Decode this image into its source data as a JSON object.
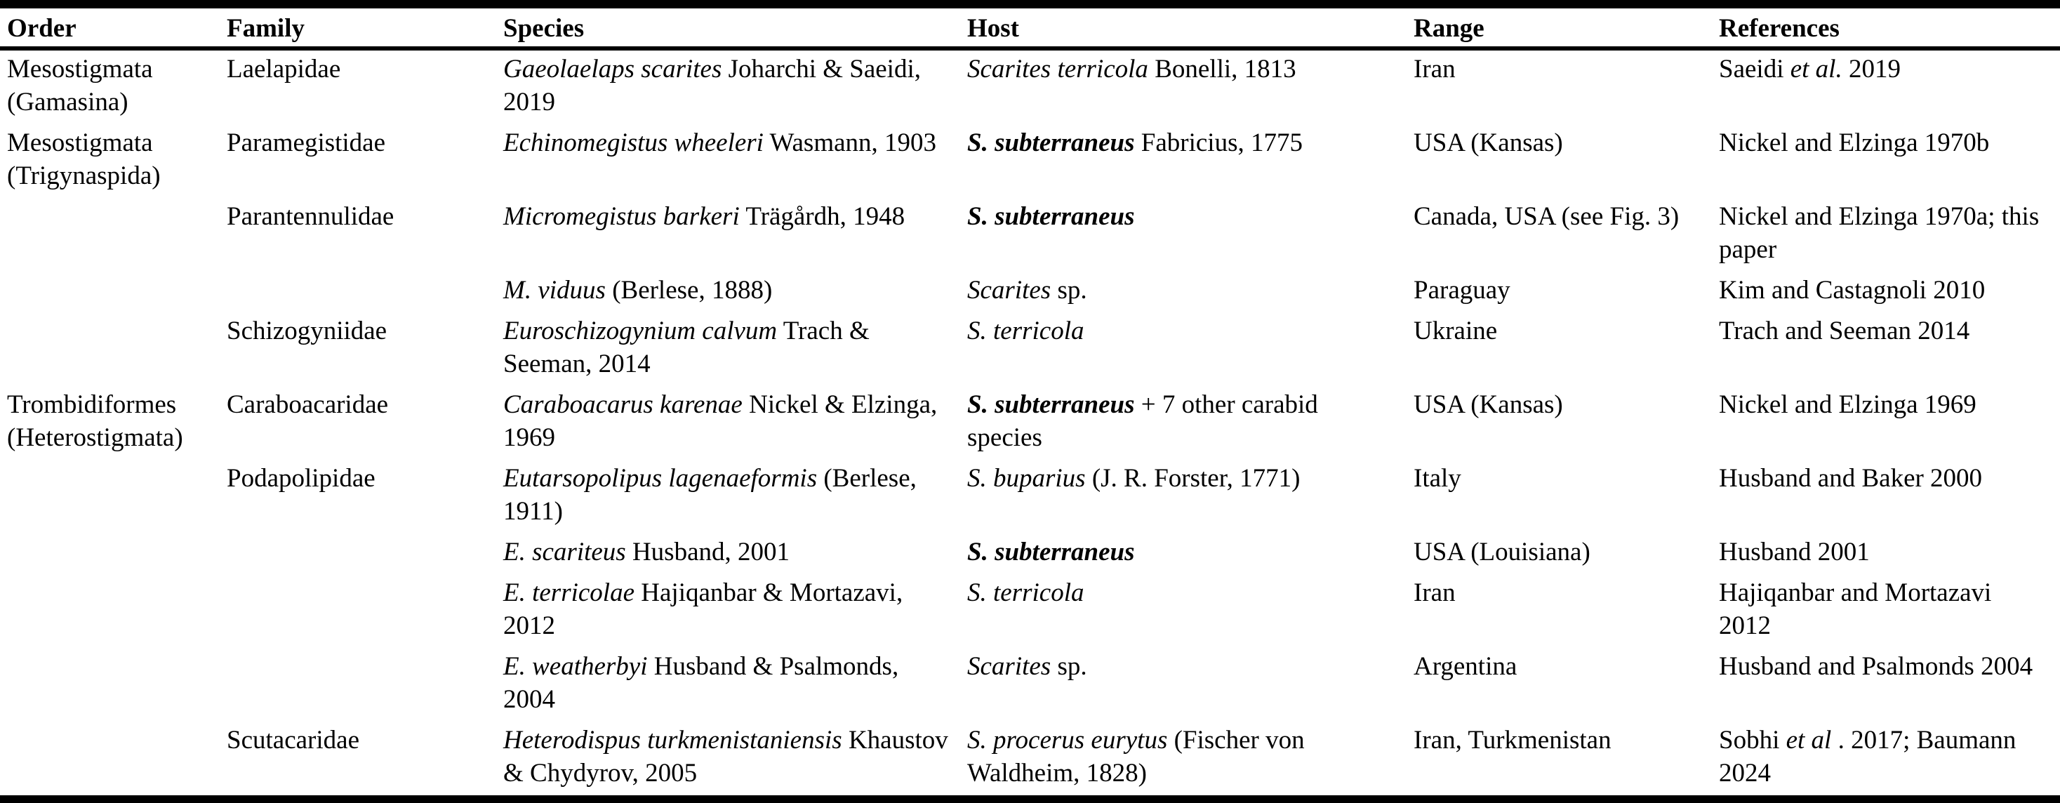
{
  "colors": {
    "text": "#000000",
    "background": "#ffffff",
    "border": "#000000"
  },
  "table": {
    "columns": [
      "Order",
      "Family",
      "Species",
      "Host",
      "Range",
      "References"
    ],
    "column_keys": [
      "order",
      "family",
      "species",
      "host",
      "range",
      "references"
    ],
    "rows": [
      {
        "order": [
          {
            "t": "Mesostigmata (Gamasina)",
            "s": "r"
          }
        ],
        "family": [
          {
            "t": "Laelapidae",
            "s": "r"
          }
        ],
        "species": [
          {
            "t": "Gaeolaelaps scarites",
            "s": "i"
          },
          {
            "t": " Joharchi & Saeidi, 2019",
            "s": "r"
          }
        ],
        "host": [
          {
            "t": "Scarites terricola",
            "s": "i"
          },
          {
            "t": " Bonelli, 1813",
            "s": "r"
          }
        ],
        "range": [
          {
            "t": "Iran",
            "s": "r"
          }
        ],
        "references": [
          {
            "t": "Saeidi ",
            "s": "r"
          },
          {
            "t": "et al.",
            "s": "i"
          },
          {
            "t": " 2019",
            "s": "r"
          }
        ]
      },
      {
        "order": [
          {
            "t": "Mesostigmata (Trigynaspida)",
            "s": "r"
          }
        ],
        "family": [
          {
            "t": "Paramegistidae",
            "s": "r"
          }
        ],
        "species": [
          {
            "t": "Echinomegistus wheeleri",
            "s": "i"
          },
          {
            "t": " Wasmann, 1903",
            "s": "r"
          }
        ],
        "host": [
          {
            "t": "S. subterraneus",
            "s": "bi"
          },
          {
            "t": " Fabricius, 1775",
            "s": "r"
          }
        ],
        "range": [
          {
            "t": "USA (Kansas)",
            "s": "r"
          }
        ],
        "references": [
          {
            "t": "Nickel and Elzinga 1970b",
            "s": "r"
          }
        ]
      },
      {
        "order": [],
        "family": [
          {
            "t": "Parantennulidae",
            "s": "r"
          }
        ],
        "species": [
          {
            "t": "Micromegistus barkeri",
            "s": "i"
          },
          {
            "t": " Trägårdh, 1948",
            "s": "r"
          }
        ],
        "host": [
          {
            "t": "S. subterraneus",
            "s": "bi"
          }
        ],
        "range": [
          {
            "t": "Canada, USA (see Fig. 3)",
            "s": "r"
          }
        ],
        "references": [
          {
            "t": "Nickel and Elzinga 1970a; this paper",
            "s": "r"
          }
        ]
      },
      {
        "order": [],
        "family": [],
        "species": [
          {
            "t": "M. viduus",
            "s": "i"
          },
          {
            "t": " (Berlese, 1888)",
            "s": "r"
          }
        ],
        "host": [
          {
            "t": "Scarites",
            "s": "i"
          },
          {
            "t": " sp.",
            "s": "r"
          }
        ],
        "range": [
          {
            "t": "Paraguay",
            "s": "r"
          }
        ],
        "references": [
          {
            "t": "Kim and Castagnoli 2010",
            "s": "r"
          }
        ]
      },
      {
        "order": [],
        "family": [
          {
            "t": "Schizogyniidae",
            "s": "r"
          }
        ],
        "species": [
          {
            "t": "Euroschizogynium calvum",
            "s": "i"
          },
          {
            "t": " Trach & Seeman, 2014",
            "s": "r"
          }
        ],
        "host": [
          {
            "t": "S. terricola",
            "s": "i"
          }
        ],
        "range": [
          {
            "t": "Ukraine",
            "s": "r"
          }
        ],
        "references": [
          {
            "t": "Trach and Seeman 2014",
            "s": "r"
          }
        ]
      },
      {
        "order": [
          {
            "t": "Trombidiformes (Heterostigmata)",
            "s": "r"
          }
        ],
        "family": [
          {
            "t": "Caraboacaridae",
            "s": "r"
          }
        ],
        "species": [
          {
            "t": "Caraboacarus karenae",
            "s": "i"
          },
          {
            "t": " Nickel & Elzinga, 1969",
            "s": "r"
          }
        ],
        "host": [
          {
            "t": "S. subterraneus",
            "s": "bi"
          },
          {
            "t": " + 7 other carabid species",
            "s": "r"
          }
        ],
        "range": [
          {
            "t": "USA (Kansas)",
            "s": "r"
          }
        ],
        "references": [
          {
            "t": "Nickel and Elzinga 1969",
            "s": "r"
          }
        ]
      },
      {
        "order": [],
        "family": [
          {
            "t": "Podapolipidae",
            "s": "r"
          }
        ],
        "species": [
          {
            "t": "Eutarsopolipus lagenaeformis",
            "s": "i"
          },
          {
            "t": " (Berlese, 1911)",
            "s": "r"
          }
        ],
        "host": [
          {
            "t": "S. buparius",
            "s": "i"
          },
          {
            "t": " (J. R. Forster, 1771)",
            "s": "r"
          }
        ],
        "range": [
          {
            "t": "Italy",
            "s": "r"
          }
        ],
        "references": [
          {
            "t": "Husband and Baker 2000",
            "s": "r"
          }
        ]
      },
      {
        "order": [],
        "family": [],
        "species": [
          {
            "t": "E. scariteus",
            "s": "i"
          },
          {
            "t": " Husband, 2001",
            "s": "r"
          }
        ],
        "host": [
          {
            "t": "S. subterraneus",
            "s": "bi"
          }
        ],
        "range": [
          {
            "t": "USA (Louisiana)",
            "s": "r"
          }
        ],
        "references": [
          {
            "t": "Husband 2001",
            "s": "r"
          }
        ]
      },
      {
        "order": [],
        "family": [],
        "species": [
          {
            "t": "E. terricolae",
            "s": "i"
          },
          {
            "t": " Hajiqanbar & Mortazavi, 2012",
            "s": "r"
          }
        ],
        "host": [
          {
            "t": "S. terricola",
            "s": "i"
          }
        ],
        "range": [
          {
            "t": "Iran",
            "s": "r"
          }
        ],
        "references": [
          {
            "t": "Hajiqanbar and Mortazavi 2012",
            "s": "r"
          }
        ]
      },
      {
        "order": [],
        "family": [],
        "species": [
          {
            "t": "E. weatherbyi",
            "s": "i"
          },
          {
            "t": " Husband & Psalmonds, 2004",
            "s": "r"
          }
        ],
        "host": [
          {
            "t": "Scarites",
            "s": "i"
          },
          {
            "t": " sp.",
            "s": "r"
          }
        ],
        "range": [
          {
            "t": "Argentina",
            "s": "r"
          }
        ],
        "references": [
          {
            "t": "Husband and Psalmonds 2004",
            "s": "r"
          }
        ]
      },
      {
        "order": [],
        "family": [
          {
            "t": "Scutacaridae",
            "s": "r"
          }
        ],
        "species": [
          {
            "t": "Heterodispus turkmenistaniensis",
            "s": "i"
          },
          {
            "t": " Khaustov & Chydyrov, 2005",
            "s": "r"
          }
        ],
        "host": [
          {
            "t": "S. procerus eurytus",
            "s": "i"
          },
          {
            "t": " (Fischer von Waldheim, 1828)",
            "s": "r"
          }
        ],
        "range": [
          {
            "t": "Iran, Turkmenistan",
            "s": "r"
          }
        ],
        "references": [
          {
            "t": "Sobhi ",
            "s": "r"
          },
          {
            "t": "et al ",
            "s": "i"
          },
          {
            "t": ". 2017; Baumann 2024",
            "s": "r"
          }
        ]
      }
    ]
  }
}
